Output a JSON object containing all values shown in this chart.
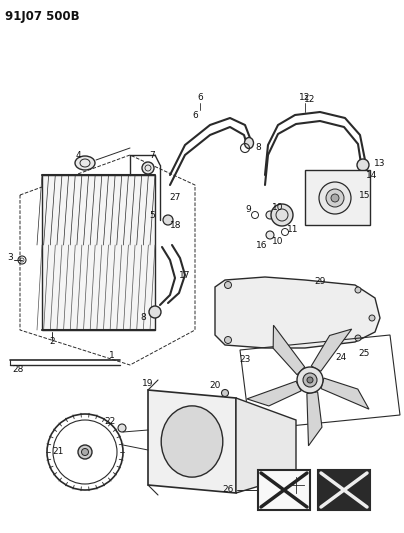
{
  "title_code": "91J07 500B",
  "bg_color": "#ffffff",
  "line_color": "#2a2a2a",
  "title_fontsize": 9,
  "fig_width": 4.04,
  "fig_height": 5.33,
  "dpi": 100
}
